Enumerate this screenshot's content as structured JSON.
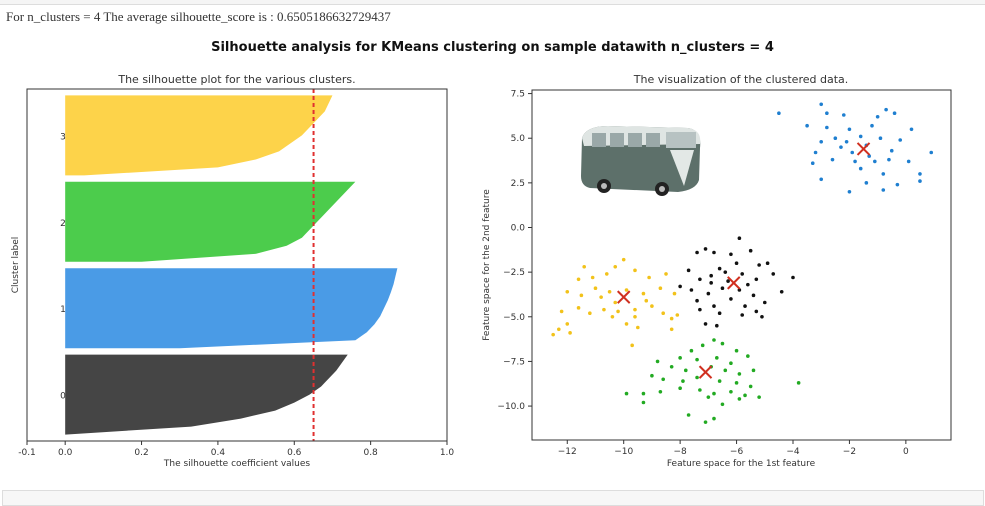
{
  "output_text": "For n_clusters = 4 The average silhouette_score is : 0.6505186632729437",
  "suptitle": "Silhouette analysis for KMeans clustering on sample datawith n_clusters = 4",
  "chart_data": [
    {
      "type": "area",
      "title": "The silhouette plot for the various clusters.",
      "xlabel": "The silhouette coefficient values",
      "ylabel": "Cluster label",
      "xlim": [
        -0.1,
        1.0
      ],
      "ylim": [
        0,
        550
      ],
      "xticks": [
        "-0.1",
        "0.0",
        "0.2",
        "0.4",
        "0.6",
        "0.8",
        "1.0"
      ],
      "xtick_values": [
        -0.1,
        0.0,
        0.2,
        0.4,
        0.6,
        0.8,
        1.0
      ],
      "grid": false,
      "average_silhouette": 0.6505186632729437,
      "average_line_color": "#e03030",
      "clusters": [
        {
          "label": "0",
          "y_range": [
            10,
            135
          ],
          "color": "#454545",
          "sorted_values": [
            0.0,
            0.33,
            0.46,
            0.55,
            0.6,
            0.64,
            0.67,
            0.69,
            0.71,
            0.725,
            0.74
          ]
        },
        {
          "label": "1",
          "y_range": [
            145,
            270
          ],
          "color": "#4a9be6",
          "sorted_values": [
            0.3,
            0.76,
            0.79,
            0.81,
            0.825,
            0.835,
            0.845,
            0.853,
            0.86,
            0.865,
            0.87
          ]
        },
        {
          "label": "2",
          "y_range": [
            280,
            405
          ],
          "color": "#4ccc4c",
          "sorted_values": [
            0.2,
            0.5,
            0.58,
            0.62,
            0.64,
            0.66,
            0.68,
            0.7,
            0.72,
            0.74,
            0.76
          ]
        },
        {
          "label": "3",
          "y_range": [
            415,
            540
          ],
          "color": "#fdd34a",
          "sorted_values": [
            0.05,
            0.4,
            0.5,
            0.56,
            0.59,
            0.62,
            0.64,
            0.66,
            0.68,
            0.69,
            0.7
          ]
        }
      ]
    },
    {
      "type": "scatter",
      "title": "The visualization of the clustered data.",
      "xlabel": "Feature space for the 1st feature",
      "ylabel": "Feature space for the 2nd feature",
      "xlim": [
        -13.25,
        1.6
      ],
      "ylim": [
        -11.9,
        7.7
      ],
      "xticks": [
        "−12",
        "−10",
        "−8",
        "−6",
        "−4",
        "−2",
        "0"
      ],
      "xtick_values": [
        -12,
        -10,
        -8,
        -6,
        -4,
        -2,
        0
      ],
      "yticks": [
        "7.5",
        "5.0",
        "2.5",
        "0.0",
        "−2.5",
        "−5.0",
        "−7.5",
        "−10.0"
      ],
      "ytick_values": [
        7.5,
        5.0,
        2.5,
        0.0,
        -2.5,
        -5.0,
        -7.5,
        -10.0
      ],
      "grid": false,
      "center_marker_color": "#d03020",
      "image": "vw-van-photo",
      "series": [
        {
          "color": "#1f7fd0",
          "center": [
            -1.5,
            4.4
          ],
          "points": [
            [
              -4.5,
              6.4
            ],
            [
              -3.0,
              6.9
            ],
            [
              -2.8,
              6.4
            ],
            [
              -2.2,
              6.3
            ],
            [
              -1.0,
              6.2
            ],
            [
              -0.7,
              6.6
            ],
            [
              -0.4,
              6.4
            ],
            [
              -3.5,
              5.7
            ],
            [
              -2.8,
              5.6
            ],
            [
              -2.0,
              5.5
            ],
            [
              -1.2,
              5.7
            ],
            [
              0.2,
              5.5
            ],
            [
              -3.0,
              4.8
            ],
            [
              -2.5,
              5.0
            ],
            [
              -1.6,
              5.1
            ],
            [
              -0.9,
              5.0
            ],
            [
              -0.2,
              4.9
            ],
            [
              -3.2,
              4.2
            ],
            [
              -2.3,
              4.5
            ],
            [
              -1.9,
              4.2
            ],
            [
              -1.3,
              4.0
            ],
            [
              -0.5,
              4.3
            ],
            [
              0.9,
              4.2
            ],
            [
              -3.3,
              3.6
            ],
            [
              -2.6,
              3.8
            ],
            [
              -1.8,
              3.7
            ],
            [
              -1.1,
              3.7
            ],
            [
              0.1,
              3.7
            ],
            [
              -1.6,
              3.3
            ],
            [
              -0.8,
              3.0
            ],
            [
              0.5,
              3.0
            ],
            [
              -3.0,
              2.7
            ],
            [
              -2.0,
              2.0
            ],
            [
              -1.4,
              2.5
            ],
            [
              -0.8,
              2.1
            ],
            [
              -0.3,
              2.4
            ],
            [
              0.5,
              2.6
            ],
            [
              -2.1,
              4.8
            ],
            [
              -1.4,
              4.6
            ],
            [
              -0.6,
              3.8
            ]
          ]
        },
        {
          "color": "#111111",
          "center": [
            -6.1,
            -3.1
          ],
          "points": [
            [
              -5.9,
              -0.6
            ],
            [
              -7.1,
              -1.2
            ],
            [
              -7.4,
              -1.4
            ],
            [
              -6.8,
              -1.4
            ],
            [
              -6.2,
              -1.5
            ],
            [
              -5.5,
              -1.3
            ],
            [
              -4.9,
              -2.0
            ],
            [
              -5.2,
              -2.1
            ],
            [
              -6.0,
              -2.0
            ],
            [
              -6.6,
              -2.3
            ],
            [
              -7.7,
              -2.4
            ],
            [
              -8.0,
              -3.3
            ],
            [
              -7.3,
              -2.9
            ],
            [
              -6.9,
              -2.7
            ],
            [
              -6.4,
              -2.5
            ],
            [
              -5.8,
              -2.6
            ],
            [
              -5.3,
              -2.9
            ],
            [
              -4.7,
              -2.6
            ],
            [
              -4.0,
              -2.8
            ],
            [
              -7.6,
              -3.5
            ],
            [
              -7.0,
              -3.7
            ],
            [
              -6.5,
              -3.4
            ],
            [
              -5.9,
              -3.5
            ],
            [
              -5.4,
              -3.8
            ],
            [
              -4.4,
              -3.6
            ],
            [
              -7.4,
              -4.1
            ],
            [
              -6.8,
              -4.4
            ],
            [
              -6.2,
              -4.0
            ],
            [
              -5.7,
              -4.4
            ],
            [
              -5.0,
              -4.2
            ],
            [
              -7.3,
              -4.6
            ],
            [
              -6.6,
              -4.8
            ],
            [
              -5.8,
              -4.9
            ],
            [
              -5.3,
              -4.7
            ],
            [
              -5.1,
              -5.0
            ],
            [
              -7.1,
              -5.4
            ],
            [
              -6.7,
              -5.5
            ],
            [
              -6.3,
              -3.0
            ],
            [
              -5.6,
              -3.2
            ],
            [
              -6.9,
              -3.1
            ]
          ]
        },
        {
          "color": "#f2c21a",
          "center": [
            -10.0,
            -3.9
          ],
          "points": [
            [
              -12.5,
              -6.0
            ],
            [
              -12.3,
              -5.7
            ],
            [
              -11.9,
              -5.9
            ],
            [
              -12.0,
              -5.4
            ],
            [
              -12.2,
              -4.7
            ],
            [
              -11.6,
              -4.5
            ],
            [
              -11.2,
              -4.8
            ],
            [
              -10.7,
              -4.6
            ],
            [
              -10.2,
              -4.7
            ],
            [
              -9.6,
              -4.6
            ],
            [
              -9.0,
              -4.4
            ],
            [
              -8.6,
              -4.8
            ],
            [
              -8.3,
              -5.1
            ],
            [
              -8.1,
              -4.9
            ],
            [
              -12.0,
              -3.6
            ],
            [
              -11.5,
              -3.8
            ],
            [
              -11.0,
              -3.4
            ],
            [
              -10.5,
              -3.6
            ],
            [
              -9.9,
              -3.5
            ],
            [
              -9.3,
              -3.7
            ],
            [
              -8.7,
              -3.4
            ],
            [
              -8.2,
              -3.7
            ],
            [
              -11.6,
              -2.9
            ],
            [
              -11.1,
              -2.8
            ],
            [
              -10.6,
              -2.6
            ],
            [
              -10.3,
              -2.2
            ],
            [
              -10.0,
              -1.8
            ],
            [
              -9.6,
              -2.4
            ],
            [
              -9.1,
              -2.8
            ],
            [
              -8.5,
              -2.6
            ],
            [
              -11.4,
              -2.2
            ],
            [
              -10.3,
              -4.2
            ],
            [
              -9.6,
              -5.0
            ],
            [
              -9.9,
              -5.4
            ],
            [
              -9.5,
              -5.6
            ],
            [
              -9.7,
              -6.6
            ],
            [
              -10.4,
              -5.0
            ],
            [
              -8.3,
              -5.7
            ],
            [
              -9.2,
              -4.1
            ],
            [
              -10.8,
              -3.9
            ]
          ]
        },
        {
          "color": "#22aa22",
          "center": [
            -7.1,
            -8.1
          ],
          "points": [
            [
              -6.8,
              -6.3
            ],
            [
              -6.5,
              -6.5
            ],
            [
              -7.2,
              -6.6
            ],
            [
              -7.6,
              -6.9
            ],
            [
              -6.0,
              -6.9
            ],
            [
              -5.6,
              -7.2
            ],
            [
              -8.0,
              -7.3
            ],
            [
              -7.4,
              -7.4
            ],
            [
              -6.7,
              -7.3
            ],
            [
              -6.2,
              -7.6
            ],
            [
              -8.8,
              -7.5
            ],
            [
              -8.3,
              -7.8
            ],
            [
              -7.8,
              -8.0
            ],
            [
              -6.9,
              -7.8
            ],
            [
              -6.4,
              -8.0
            ],
            [
              -5.9,
              -8.2
            ],
            [
              -5.4,
              -8.0
            ],
            [
              -9.0,
              -8.3
            ],
            [
              -8.6,
              -8.5
            ],
            [
              -7.9,
              -8.6
            ],
            [
              -7.4,
              -8.4
            ],
            [
              -6.6,
              -8.6
            ],
            [
              -6.0,
              -8.7
            ],
            [
              -5.5,
              -8.9
            ],
            [
              -9.3,
              -9.3
            ],
            [
              -8.7,
              -9.2
            ],
            [
              -8.0,
              -9.0
            ],
            [
              -7.3,
              -9.1
            ],
            [
              -6.8,
              -9.3
            ],
            [
              -6.2,
              -9.2
            ],
            [
              -5.7,
              -9.4
            ],
            [
              -5.2,
              -9.5
            ],
            [
              -9.9,
              -9.3
            ],
            [
              -9.3,
              -9.8
            ],
            [
              -7.0,
              -9.5
            ],
            [
              -6.5,
              -9.9
            ],
            [
              -5.9,
              -9.6
            ],
            [
              -7.7,
              -10.5
            ],
            [
              -7.1,
              -10.9
            ],
            [
              -6.8,
              -10.7
            ],
            [
              -3.8,
              -8.7
            ]
          ]
        }
      ]
    }
  ]
}
